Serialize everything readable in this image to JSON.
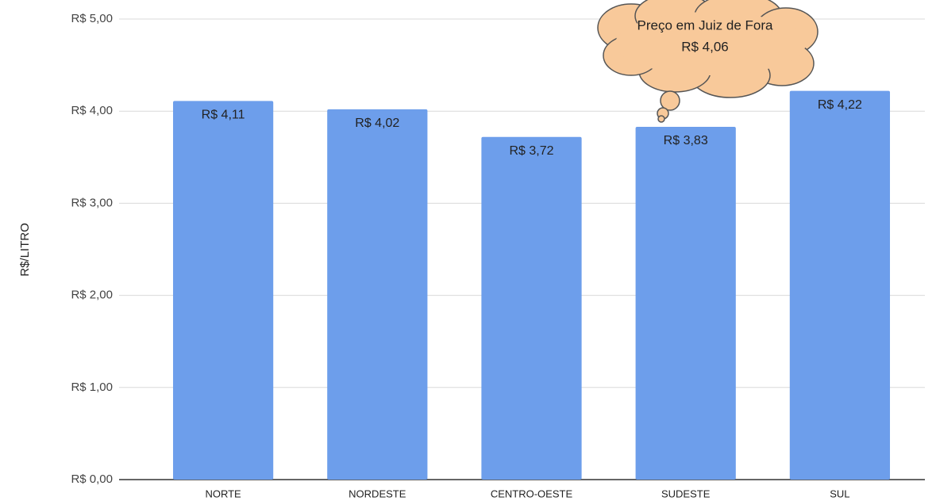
{
  "chart_data": {
    "type": "bar",
    "y_label": "R$/LITRO",
    "categories": [
      "NORTE",
      "NORDESTE",
      "CENTRO-OESTE",
      "SUDESTE",
      "SUL"
    ],
    "values": [
      4.11,
      4.02,
      3.72,
      3.83,
      4.22
    ],
    "value_labels": [
      "R$ 4,11",
      "R$ 4,02",
      "R$ 3,72",
      "R$ 3,83",
      "R$ 4,22"
    ],
    "color": "#6d9eeb",
    "ylim": [
      0,
      5
    ],
    "yticks": [
      {
        "value": 0,
        "label": "R$ 0,00"
      },
      {
        "value": 1,
        "label": "R$ 1,00"
      },
      {
        "value": 2,
        "label": "R$ 2,00"
      },
      {
        "value": 3,
        "label": "R$ 3,00"
      },
      {
        "value": 4,
        "label": "R$ 4,00"
      },
      {
        "value": 5,
        "label": "R$ 5,00"
      }
    ],
    "grid": true,
    "annotation": [
      "Preço em Juiz de Fora",
      "R$ 4,06"
    ]
  }
}
